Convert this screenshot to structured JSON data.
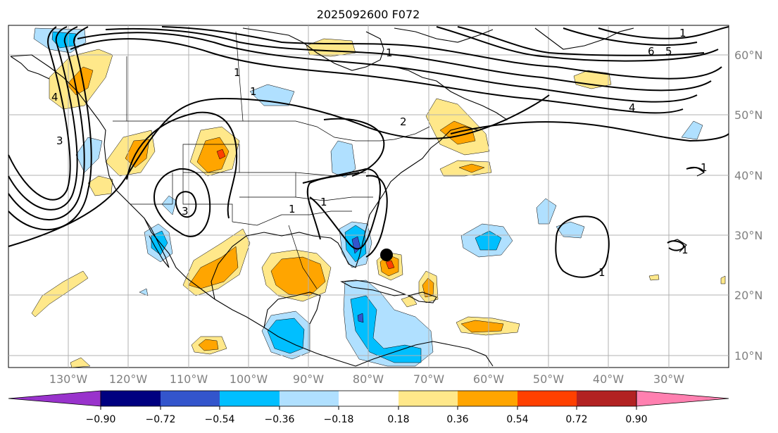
{
  "title": "2025092600 F072",
  "longitude_labels": [
    "130°W",
    "120°W",
    "110°W",
    "100°W",
    "90°W",
    "80°W",
    "70°W",
    "60°W",
    "50°W",
    "40°W",
    "30°W"
  ],
  "latitude_labels": [
    "60°N",
    "50°N",
    "40°N",
    "30°N",
    "20°N",
    "10°N"
  ],
  "contour_labels": [
    "1",
    "6",
    "5",
    "1",
    "4",
    "2",
    "3",
    "3",
    "1",
    "1",
    "1",
    "1",
    "1",
    "1",
    "4",
    "1"
  ],
  "colorbar": {
    "tick_labels": [
      "−0.90",
      "−0.72",
      "−0.54",
      "−0.36",
      "−0.18",
      "0.18",
      "0.36",
      "0.54",
      "0.72",
      "0.90"
    ],
    "colors": [
      "#9933cc",
      "#000080",
      "#3355cc",
      "#00bfff",
      "#b0e0ff",
      "#ffffff",
      "#ffe88a",
      "#ffa500",
      "#ff4000",
      "#b22222",
      "#ff80b0"
    ]
  },
  "colors": {
    "land_outline": "#000000",
    "grid": "#b0b0b0",
    "contour": "#000000"
  },
  "marker": "storm-center-dot"
}
